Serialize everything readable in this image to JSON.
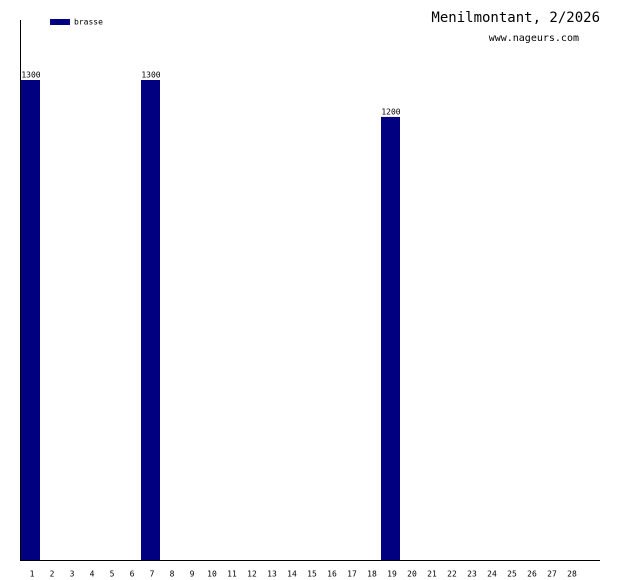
{
  "chart_data": {
    "type": "bar",
    "title": "Menilmontant, 2/2026",
    "subtitle": "www.nageurs.com",
    "categories": [
      "1",
      "2",
      "3",
      "4",
      "5",
      "6",
      "7",
      "8",
      "9",
      "10",
      "11",
      "12",
      "13",
      "14",
      "15",
      "16",
      "17",
      "18",
      "19",
      "20",
      "21",
      "22",
      "23",
      "24",
      "25",
      "26",
      "27",
      "28"
    ],
    "series": [
      {
        "name": "brasse",
        "color": "#000080",
        "values": [
          1300,
          null,
          null,
          null,
          null,
          null,
          1300,
          null,
          null,
          null,
          null,
          null,
          null,
          null,
          null,
          null,
          null,
          null,
          1200,
          null,
          null,
          null,
          null,
          null,
          null,
          null,
          null,
          null
        ]
      }
    ],
    "ylim": [
      0,
      1462.5
    ],
    "legend": "top-left"
  }
}
